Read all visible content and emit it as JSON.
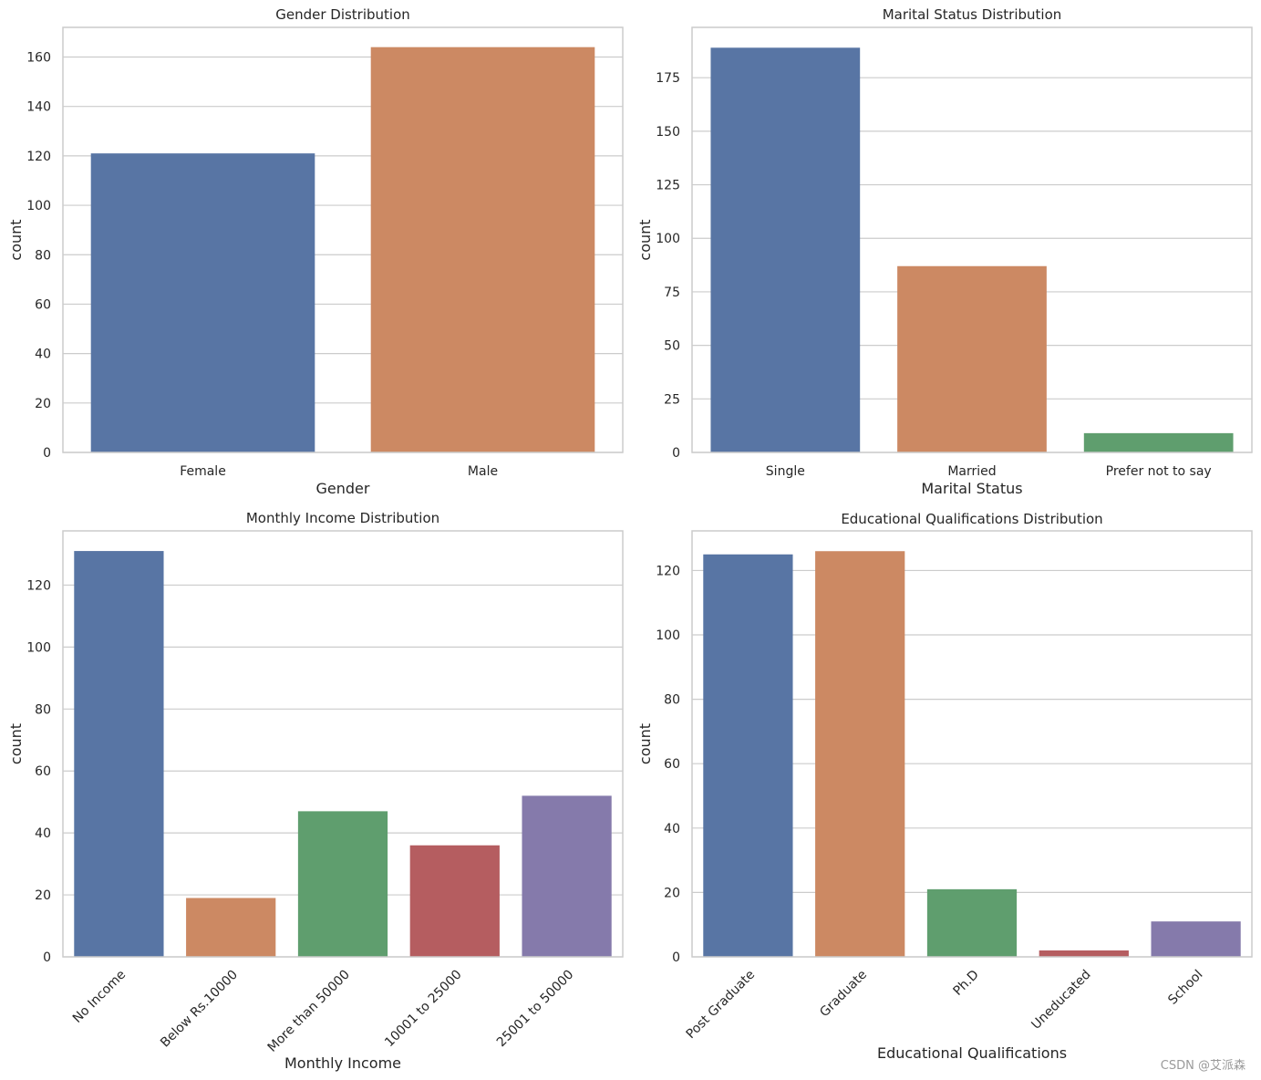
{
  "chart_data": [
    {
      "type": "bar",
      "title": "Gender Distribution",
      "xlabel": "Gender",
      "ylabel": "count",
      "categories": [
        "Female",
        "Male"
      ],
      "values": [
        121,
        164
      ],
      "ylim": [
        0,
        172
      ],
      "yticks": [
        0,
        20,
        40,
        60,
        80,
        100,
        120,
        140,
        160
      ],
      "grid": true,
      "rotate_xticks": false
    },
    {
      "type": "bar",
      "title": "Marital Status Distribution",
      "xlabel": "Marital Status",
      "ylabel": "count",
      "categories": [
        "Single",
        "Married",
        "Prefer not to say"
      ],
      "values": [
        189,
        87,
        9
      ],
      "ylim": [
        0,
        198.5
      ],
      "yticks": [
        0,
        25,
        50,
        75,
        100,
        125,
        150,
        175
      ],
      "grid": true,
      "rotate_xticks": false
    },
    {
      "type": "bar",
      "title": "Monthly Income Distribution",
      "xlabel": "Monthly Income",
      "ylabel": "count",
      "categories": [
        "No Income",
        "Below Rs.10000",
        "More than 50000",
        "10001 to 25000",
        "25001 to 50000"
      ],
      "values": [
        131,
        19,
        47,
        36,
        52
      ],
      "ylim": [
        0,
        137.5
      ],
      "yticks": [
        0,
        20,
        40,
        60,
        80,
        100,
        120
      ],
      "grid": true,
      "rotate_xticks": true
    },
    {
      "type": "bar",
      "title": "Educational Qualifications Distribution",
      "xlabel": "Educational Qualifications",
      "ylabel": "count",
      "categories": [
        "Post Graduate",
        "Graduate",
        "Ph.D",
        "Uneducated",
        "School"
      ],
      "values": [
        125,
        126,
        21,
        2,
        11
      ],
      "ylim": [
        0,
        132.3
      ],
      "yticks": [
        0,
        20,
        40,
        60,
        80,
        100,
        120
      ],
      "grid": true,
      "rotate_xticks": true
    }
  ],
  "palette": [
    "#5875a4",
    "#cc8963",
    "#5f9e6e",
    "#b55d60",
    "#857aab"
  ],
  "watermark": "CSDN @艾派森"
}
